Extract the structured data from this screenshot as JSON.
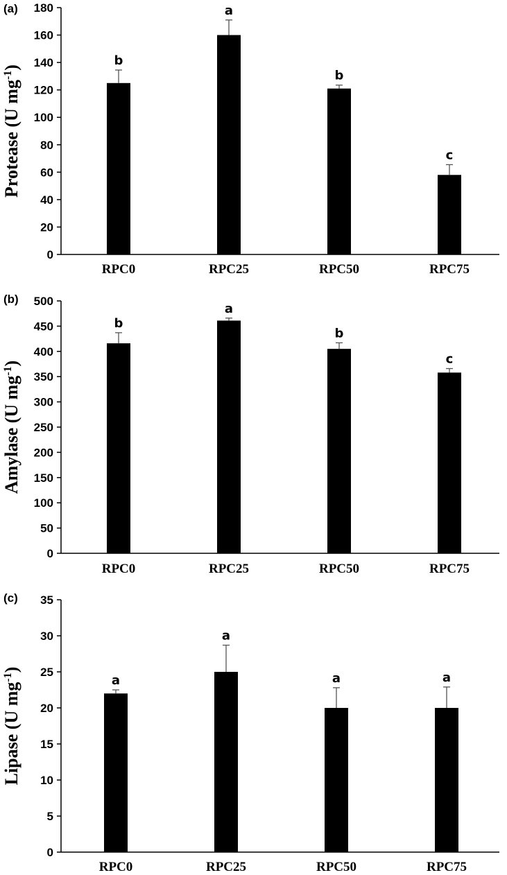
{
  "chart_data": [
    {
      "type": "bar",
      "panel": "(a)",
      "categories": [
        "RPC0",
        "RPC25",
        "RPC50",
        "RPC75"
      ],
      "values": [
        125,
        160,
        121,
        58
      ],
      "errors": [
        9.5,
        11,
        2.5,
        7.5
      ],
      "annotations": [
        "b",
        "a",
        "b",
        "c"
      ],
      "ylabel_main": "Protease (U mg",
      "ylabel_sup": "-1",
      "ylabel_close": ")",
      "ylim": [
        0,
        180
      ],
      "yticks": [
        0,
        20,
        40,
        60,
        80,
        100,
        120,
        140,
        160,
        180
      ],
      "grid": false,
      "color": "#000000"
    },
    {
      "type": "bar",
      "panel": "(b)",
      "categories": [
        "RPC0",
        "RPC25",
        "RPC50",
        "RPC75"
      ],
      "values": [
        416,
        461,
        405,
        358
      ],
      "errors": [
        21,
        5,
        12,
        8
      ],
      "annotations": [
        "b",
        "a",
        "b",
        "c"
      ],
      "ylabel_main": "Amylase (U mg",
      "ylabel_sup": "-1",
      "ylabel_close": ")",
      "ylim": [
        0,
        500
      ],
      "yticks": [
        0,
        50,
        100,
        150,
        200,
        250,
        300,
        350,
        400,
        450,
        500
      ],
      "grid": false,
      "color": "#000000"
    },
    {
      "type": "bar",
      "panel": "(c)",
      "categories": [
        "RPC0",
        "RPC25",
        "RPC50",
        "RPC75"
      ],
      "values": [
        22,
        25,
        20,
        20
      ],
      "errors": [
        0.5,
        3.7,
        2.8,
        2.9
      ],
      "annotations": [
        "a",
        "a",
        "a",
        "a"
      ],
      "ylabel_main": "Lipase (U mg",
      "ylabel_sup": "-1",
      "ylabel_close": ")",
      "ylim": [
        0,
        35
      ],
      "yticks": [
        0,
        5,
        10,
        15,
        20,
        25,
        30,
        35
      ],
      "grid": false,
      "color": "#000000"
    }
  ]
}
